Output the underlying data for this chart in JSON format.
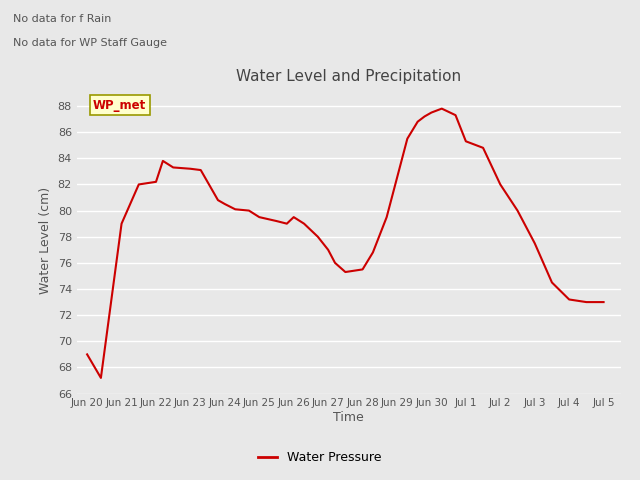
{
  "title": "Water Level and Precipitation",
  "xlabel": "Time",
  "ylabel": "Water Level (cm)",
  "legend_label": "Water Pressure",
  "annotation_line1": "No data for f Rain",
  "annotation_line2": "No data for WP Staff Gauge",
  "wp_met_label": "WP_met",
  "line_color": "#cc0000",
  "ylim": [
    66,
    89.5
  ],
  "yticks": [
    66,
    68,
    70,
    72,
    74,
    76,
    78,
    80,
    82,
    84,
    86,
    88
  ],
  "xtick_labels": [
    "Jun 20",
    "Jun 21",
    "Jun 22",
    "Jun 23",
    "Jun 24",
    "Jun 25",
    "Jun 26",
    "Jun 27",
    "Jun 28",
    "Jun 29",
    "Jun 30",
    "Jul 1",
    "Jul 2",
    "Jul 3",
    "Jul 4",
    "Jul 5"
  ],
  "x_values": [
    0,
    0.4,
    1.0,
    1.5,
    2.0,
    2.2,
    2.5,
    3.0,
    3.3,
    3.8,
    4.0,
    4.3,
    4.7,
    5.0,
    5.5,
    5.8,
    6.0,
    6.3,
    6.7,
    7.0,
    7.2,
    7.5,
    8.0,
    8.3,
    8.7,
    9.0,
    9.3,
    9.6,
    9.8,
    10.0,
    10.3,
    10.7,
    11.0,
    11.5,
    12.0,
    12.5,
    13.0,
    13.5,
    14.0,
    14.5,
    15.0
  ],
  "y_values": [
    69.0,
    67.2,
    79.0,
    82.0,
    82.2,
    83.8,
    83.3,
    83.2,
    83.1,
    80.8,
    80.5,
    80.1,
    80.0,
    79.5,
    79.2,
    79.0,
    79.5,
    79.0,
    78.0,
    77.0,
    76.0,
    75.3,
    75.5,
    76.8,
    79.5,
    82.5,
    85.5,
    86.8,
    87.2,
    87.5,
    87.8,
    87.3,
    85.3,
    84.8,
    82.0,
    80.0,
    77.5,
    74.5,
    73.2,
    73.0,
    73.0
  ],
  "background_color": "#e8e8e8",
  "plot_bg_color": "#e8e8e8",
  "grid_color": "#ffffff",
  "title_color": "#444444",
  "label_color": "#555555",
  "tick_color": "#555555",
  "line_width": 1.5,
  "wp_met_box_facecolor": "#ffffcc",
  "wp_met_box_edgecolor": "#999900"
}
